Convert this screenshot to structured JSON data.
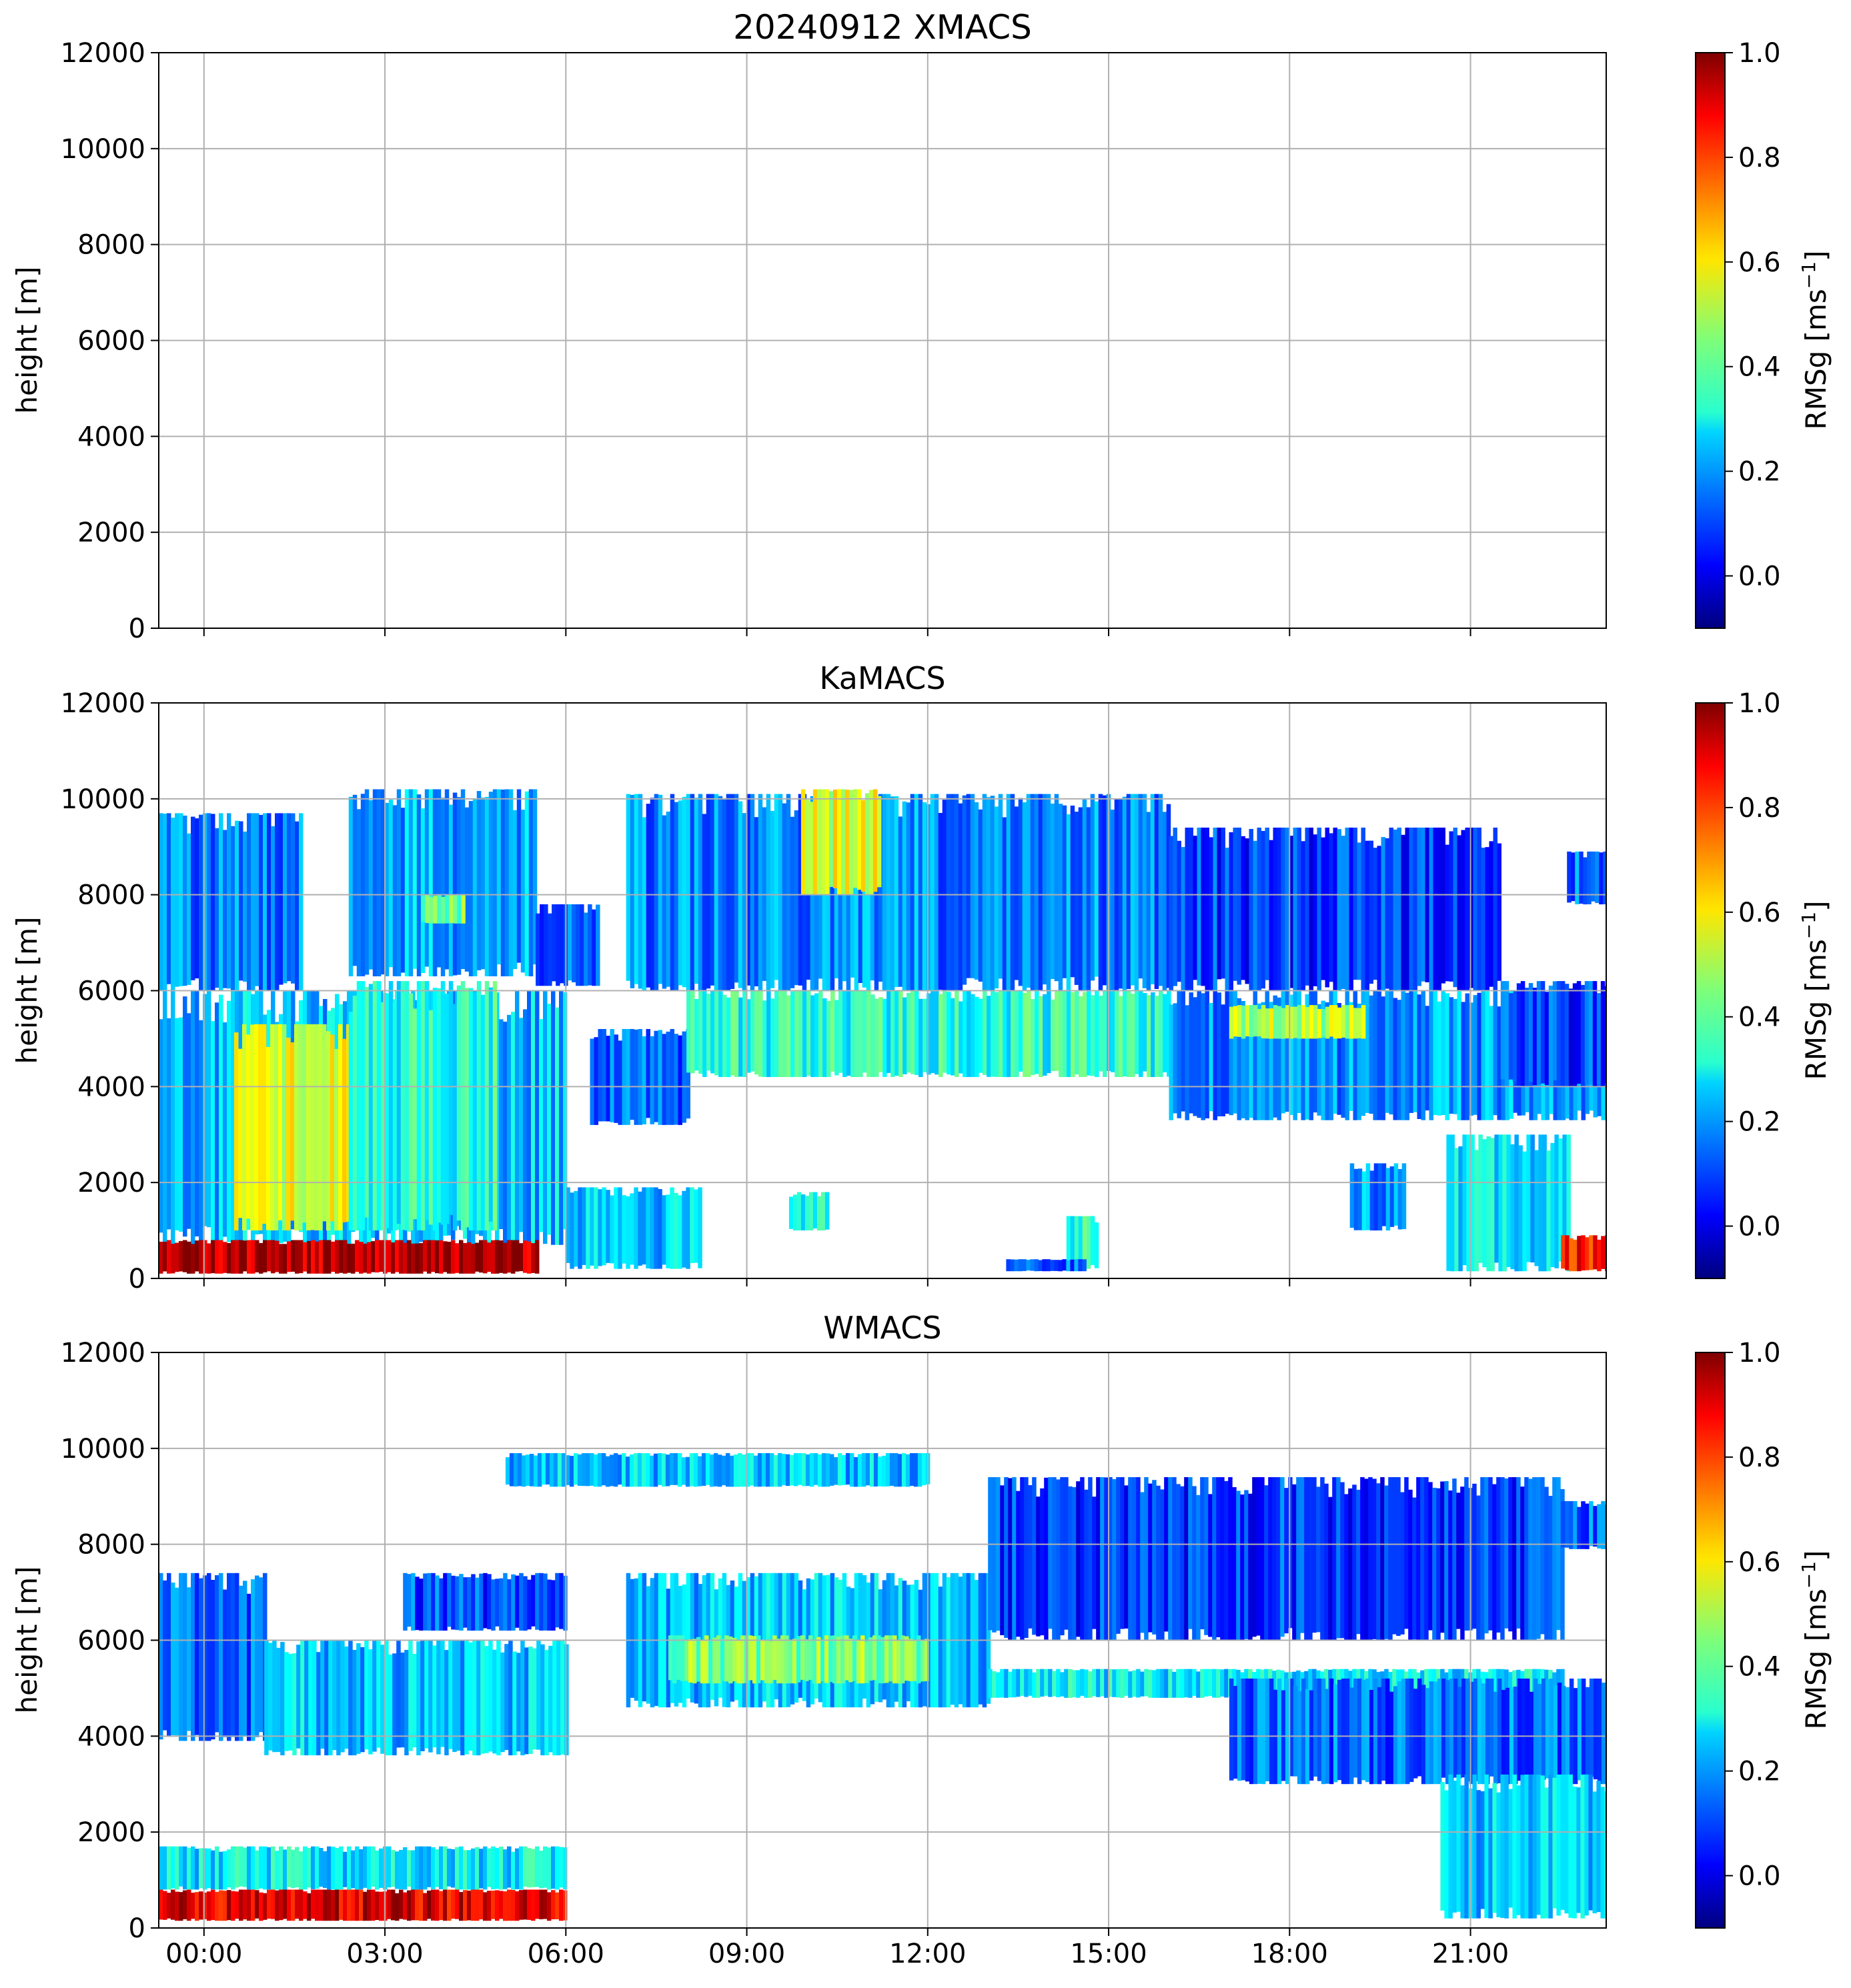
{
  "chart_data": [
    {
      "type": "heatmap",
      "title": "20240912 XMACS",
      "ylabel": "height [m]",
      "ylim": [
        0,
        12000
      ],
      "yticks": [
        0,
        2000,
        4000,
        6000,
        8000,
        10000,
        12000
      ],
      "y_tick_labels": [
        "0",
        "2000",
        "4000",
        "6000",
        "8000",
        "10000",
        "12000"
      ],
      "xlim_hours": [
        -0.75,
        23.25
      ],
      "xticks_hours": [
        0,
        3,
        6,
        9,
        12,
        15,
        18,
        21
      ],
      "x_tick_labels": [],
      "grid": true,
      "colorbar": {
        "label": "RMSg [ms",
        "label_sup": "−1",
        "label_end": "]",
        "range": [
          -0.1,
          1.0
        ],
        "ticks": [
          "0.0",
          "0.2",
          "0.4",
          "0.6",
          "0.8",
          "1.0"
        ],
        "colormap": "jet"
      },
      "echo_regions": []
    },
    {
      "type": "heatmap",
      "title": "KaMACS",
      "ylabel": "height [m]",
      "ylim": [
        0,
        12000
      ],
      "yticks": [
        0,
        2000,
        4000,
        6000,
        8000,
        10000,
        12000
      ],
      "y_tick_labels": [
        "0",
        "2000",
        "4000",
        "6000",
        "8000",
        "10000",
        "12000"
      ],
      "xlim_hours": [
        -0.75,
        23.25
      ],
      "xticks_hours": [
        0,
        3,
        6,
        9,
        12,
        15,
        18,
        21
      ],
      "x_tick_labels": [],
      "grid": true,
      "colorbar": {
        "label": "RMSg [ms",
        "label_sup": "−1",
        "label_end": "]",
        "range": [
          -0.1,
          1.0
        ],
        "ticks": [
          "0.0",
          "0.2",
          "0.4",
          "0.6",
          "0.8",
          "1.0"
        ],
        "colormap": "jet"
      },
      "echo_regions": [
        {
          "t": [
            -0.75,
            1.6
          ],
          "base_m": 6000,
          "top_m": 9700,
          "rms": 0.18
        },
        {
          "t": [
            -0.75,
            6.0
          ],
          "base_m": 700,
          "top_m": 6000,
          "rms": 0.25
        },
        {
          "t": [
            0.5,
            2.4
          ],
          "base_m": 1000,
          "top_m": 5300,
          "rms": 0.55
        },
        {
          "t": [
            2.4,
            4.8
          ],
          "base_m": 1000,
          "top_m": 6200,
          "rms": 0.35
        },
        {
          "t": [
            -0.75,
            5.5
          ],
          "base_m": 100,
          "top_m": 800,
          "rms": 0.95
        },
        {
          "t": [
            2.4,
            5.5
          ],
          "base_m": 6300,
          "top_m": 10200,
          "rms": 0.22
        },
        {
          "t": [
            5.5,
            6.5
          ],
          "base_m": 6100,
          "top_m": 7800,
          "rms": 0.12
        },
        {
          "t": [
            6.0,
            8.2
          ],
          "base_m": 200,
          "top_m": 1900,
          "rms": 0.25
        },
        {
          "t": [
            6.4,
            8.0
          ],
          "base_m": 3200,
          "top_m": 5200,
          "rms": 0.15
        },
        {
          "t": [
            7.0,
            16.0
          ],
          "base_m": 6000,
          "top_m": 10100,
          "rms": 0.18
        },
        {
          "t": [
            8.0,
            16.0
          ],
          "base_m": 4200,
          "top_m": 6000,
          "rms": 0.35
        },
        {
          "t": [
            16.0,
            21.5
          ],
          "base_m": 6000,
          "top_m": 9400,
          "rms": 0.1
        },
        {
          "t": [
            16.0,
            23.25
          ],
          "base_m": 3300,
          "top_m": 6000,
          "rms": 0.2
        },
        {
          "t": [
            17.0,
            19.2
          ],
          "base_m": 5000,
          "top_m": 5700,
          "rms": 0.5
        },
        {
          "t": [
            21.5,
            23.25
          ],
          "base_m": 4000,
          "top_m": 6200,
          "rms": 0.1
        },
        {
          "t": [
            22.6,
            23.25
          ],
          "base_m": 7800,
          "top_m": 8900,
          "rms": 0.15
        },
        {
          "t": [
            19.0,
            19.9
          ],
          "base_m": 1000,
          "top_m": 2400,
          "rms": 0.2
        },
        {
          "t": [
            20.6,
            22.6
          ],
          "base_m": 150,
          "top_m": 3000,
          "rms": 0.3
        },
        {
          "t": [
            22.5,
            23.25
          ],
          "base_m": 150,
          "top_m": 900,
          "rms": 0.85
        },
        {
          "t": [
            9.7,
            10.3
          ],
          "base_m": 1000,
          "top_m": 1800,
          "rms": 0.3
        },
        {
          "t": [
            14.3,
            14.8
          ],
          "base_m": 200,
          "top_m": 1300,
          "rms": 0.35
        },
        {
          "t": [
            13.3,
            14.6
          ],
          "base_m": 150,
          "top_m": 400,
          "rms": 0.15
        },
        {
          "t": [
            9.9,
            11.2
          ],
          "base_m": 8000,
          "top_m": 10200,
          "rms": 0.55
        },
        {
          "t": [
            3.6,
            4.3
          ],
          "base_m": 7400,
          "top_m": 8000,
          "rms": 0.45
        }
      ]
    },
    {
      "type": "heatmap",
      "title": "WMACS",
      "ylabel": "height [m]",
      "ylim": [
        0,
        12000
      ],
      "yticks": [
        0,
        2000,
        4000,
        6000,
        8000,
        10000,
        12000
      ],
      "y_tick_labels": [
        "0",
        "2000",
        "4000",
        "6000",
        "8000",
        "10000",
        "12000"
      ],
      "xlim_hours": [
        -0.75,
        23.25
      ],
      "xticks_hours": [
        0,
        3,
        6,
        9,
        12,
        15,
        18,
        21
      ],
      "x_tick_labels": [
        "00:00",
        "03:00",
        "06:00",
        "09:00",
        "12:00",
        "15:00",
        "18:00",
        "21:00"
      ],
      "grid": true,
      "colorbar": {
        "label": "RMSg [ms",
        "label_sup": "−1",
        "label_end": "]",
        "range": [
          -0.1,
          1.0
        ],
        "ticks": [
          "0.0",
          "0.2",
          "0.4",
          "0.6",
          "0.8",
          "1.0"
        ],
        "colormap": "jet"
      },
      "echo_regions": [
        {
          "t": [
            -0.75,
            1.0
          ],
          "base_m": 3900,
          "top_m": 7400,
          "rms": 0.15
        },
        {
          "t": [
            1.0,
            6.0
          ],
          "base_m": 3600,
          "top_m": 6000,
          "rms": 0.25
        },
        {
          "t": [
            3.3,
            6.0
          ],
          "base_m": 6200,
          "top_m": 7400,
          "rms": 0.12
        },
        {
          "t": [
            7.0,
            13.0
          ],
          "base_m": 4600,
          "top_m": 7400,
          "rms": 0.25
        },
        {
          "t": [
            7.7,
            12.0
          ],
          "base_m": 5100,
          "top_m": 6100,
          "rms": 0.45
        },
        {
          "t": [
            13.0,
            22.5
          ],
          "base_m": 6000,
          "top_m": 9400,
          "rms": 0.1
        },
        {
          "t": [
            13.0,
            22.5
          ],
          "base_m": 4800,
          "top_m": 5400,
          "rms": 0.3
        },
        {
          "t": [
            17.0,
            23.25
          ],
          "base_m": 3000,
          "top_m": 5200,
          "rms": 0.15
        },
        {
          "t": [
            20.5,
            23.25
          ],
          "base_m": 200,
          "top_m": 3200,
          "rms": 0.25
        },
        {
          "t": [
            22.5,
            23.25
          ],
          "base_m": 7900,
          "top_m": 8900,
          "rms": 0.15
        },
        {
          "t": [
            -0.75,
            6.0
          ],
          "base_m": 150,
          "top_m": 800,
          "rms": 0.9
        },
        {
          "t": [
            -0.75,
            6.0
          ],
          "base_m": 800,
          "top_m": 1700,
          "rms": 0.3
        },
        {
          "t": [
            5.0,
            12.0
          ],
          "base_m": 9200,
          "top_m": 9900,
          "rms": 0.25
        }
      ]
    }
  ]
}
